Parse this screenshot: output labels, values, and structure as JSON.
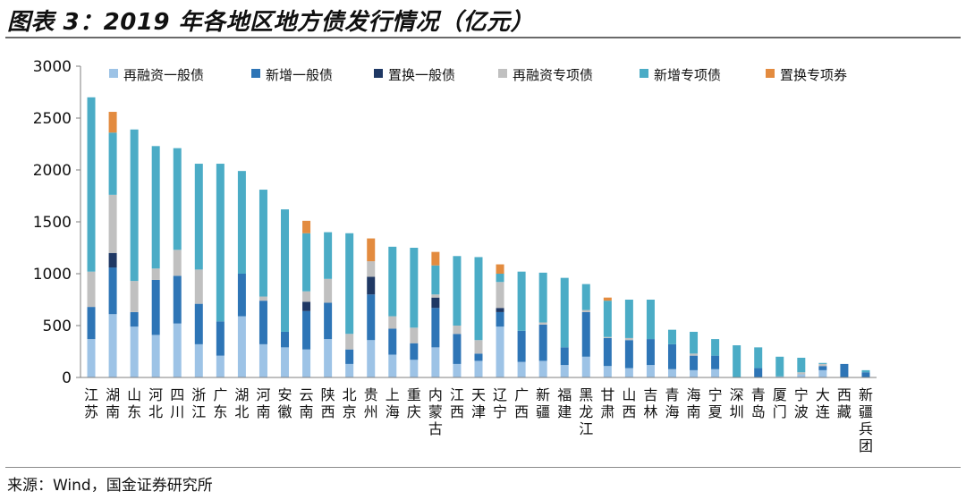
{
  "title": "图表 3：2019 年各地区地方债发行情况（亿元）",
  "source": "来源：Wind，国金证券研究所",
  "chart_data": {
    "type": "bar",
    "stacked": true,
    "ylim": [
      0,
      3000
    ],
    "yticks": [
      0,
      500,
      1000,
      1500,
      2000,
      2500,
      3000
    ],
    "legend_position": "top",
    "categories": [
      "江苏",
      "湖南",
      "山东",
      "河北",
      "四川",
      "浙江",
      "广东",
      "湖北",
      "河南",
      "安徽",
      "云南",
      "陕西",
      "北京",
      "贵州",
      "上海",
      "重庆",
      "内蒙古",
      "江西",
      "天津",
      "辽宁",
      "广西",
      "新疆",
      "福建",
      "黑龙江",
      "甘肃",
      "山西",
      "吉林",
      "青海",
      "海南",
      "宁夏",
      "深圳",
      "青岛",
      "厦门",
      "宁波",
      "大连",
      "西藏",
      "新疆兵团"
    ],
    "series": [
      {
        "name": "再融资一般债",
        "color": "#9dc3e6",
        "values": [
          370,
          610,
          490,
          410,
          520,
          320,
          210,
          590,
          320,
          290,
          270,
          370,
          130,
          360,
          220,
          170,
          290,
          130,
          160,
          490,
          150,
          160,
          120,
          200,
          110,
          90,
          120,
          80,
          70,
          80,
          0,
          0,
          10,
          30,
          70,
          0,
          0
        ]
      },
      {
        "name": "新增一般债",
        "color": "#2e75b6",
        "values": [
          310,
          450,
          140,
          530,
          460,
          390,
          330,
          410,
          420,
          150,
          370,
          350,
          140,
          440,
          250,
          160,
          380,
          290,
          70,
          140,
          300,
          350,
          170,
          430,
          270,
          270,
          250,
          240,
          140,
          130,
          0,
          90,
          0,
          0,
          40,
          130,
          50
        ]
      },
      {
        "name": "置换一般债",
        "color": "#1f3864",
        "values": [
          0,
          140,
          0,
          0,
          0,
          0,
          0,
          0,
          0,
          0,
          90,
          0,
          0,
          170,
          0,
          0,
          100,
          0,
          0,
          40,
          0,
          0,
          0,
          0,
          0,
          0,
          0,
          0,
          0,
          0,
          0,
          0,
          0,
          0,
          0,
          0,
          0
        ]
      },
      {
        "name": "再融资专项债",
        "color": "#c0c0c0",
        "values": [
          340,
          560,
          300,
          110,
          250,
          330,
          0,
          0,
          40,
          0,
          100,
          230,
          150,
          150,
          120,
          150,
          30,
          80,
          130,
          250,
          0,
          20,
          0,
          20,
          10,
          20,
          0,
          0,
          20,
          0,
          0,
          0,
          0,
          20,
          20,
          0,
          0
        ]
      },
      {
        "name": "新增专项债",
        "color": "#4bacc6",
        "values": [
          1680,
          600,
          1460,
          1180,
          980,
          1020,
          1520,
          990,
          1030,
          1180,
          560,
          450,
          970,
          0,
          670,
          770,
          280,
          670,
          800,
          80,
          570,
          480,
          670,
          250,
          350,
          370,
          380,
          140,
          210,
          160,
          310,
          200,
          190,
          140,
          10,
          0,
          20
        ]
      },
      {
        "name": "置换专项券",
        "color": "#e38b3f",
        "values": [
          0,
          200,
          0,
          0,
          0,
          0,
          0,
          0,
          0,
          0,
          120,
          0,
          0,
          220,
          0,
          0,
          130,
          0,
          0,
          90,
          0,
          0,
          0,
          0,
          30,
          0,
          0,
          0,
          0,
          0,
          0,
          0,
          0,
          0,
          0,
          0,
          0
        ]
      }
    ]
  }
}
